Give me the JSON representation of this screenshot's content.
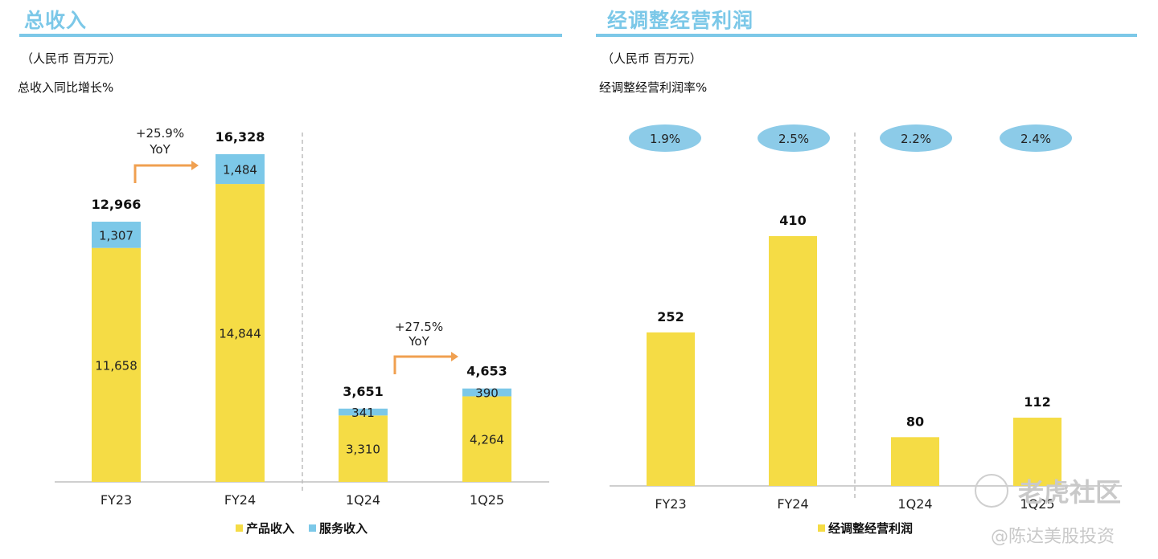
{
  "colors": {
    "product": "#f5dc45",
    "service": "#7cc8e8",
    "profit": "#f5dc45",
    "pill": "#8ccbe8",
    "arrow": "#f0a050",
    "title": "#7cc8e8"
  },
  "left_panel": {
    "title": "总收入",
    "unit": "（人民币 百万元）",
    "subtitle": "总收入同比增长%",
    "yoy": [
      {
        "pct": "+25.9%",
        "label": "YoY"
      },
      {
        "pct": "+27.5%",
        "label": "YoY"
      }
    ],
    "legend": [
      {
        "label": "产品收入",
        "color": "#f5dc45"
      },
      {
        "label": "服务收入",
        "color": "#7cc8e8"
      }
    ]
  },
  "right_panel": {
    "title": "经调整经营利润",
    "unit": "（人民币 百万元）",
    "subtitle": "经调整经营利润率%",
    "legend": [
      {
        "label": "经调整经营利润",
        "color": "#f5dc45"
      }
    ]
  },
  "watermark": {
    "brand": "老虎社区",
    "author": "@陈达美股投资"
  },
  "chart_data": [
    {
      "type": "bar",
      "stacked": true,
      "title": "总收入",
      "categories": [
        "FY23",
        "FY24",
        "1Q24",
        "1Q25"
      ],
      "series": [
        {
          "name": "产品收入",
          "values": [
            11658,
            14844,
            3310,
            4264
          ],
          "labels": [
            "11,658",
            "14,844",
            "3,310",
            "4,264"
          ]
        },
        {
          "name": "服务收入",
          "values": [
            1307,
            1484,
            341,
            390
          ],
          "labels": [
            "1,307",
            "1,484",
            "341",
            "390"
          ]
        }
      ],
      "totals": [
        12966,
        16328,
        3651,
        4653
      ],
      "total_labels": [
        "12,966",
        "16,328",
        "3,651",
        "4,653"
      ],
      "annotations": [
        {
          "between": [
            "FY23",
            "FY24"
          ],
          "text": "+25.9% YoY"
        },
        {
          "between": [
            "1Q24",
            "1Q25"
          ],
          "text": "+27.5% YoY"
        }
      ],
      "grid": false,
      "legend": "bottom"
    },
    {
      "type": "bar",
      "title": "经调整经营利润",
      "categories": [
        "FY23",
        "FY24",
        "1Q24",
        "1Q25"
      ],
      "series": [
        {
          "name": "经调整经营利润",
          "values": [
            252,
            410,
            80,
            112
          ],
          "labels": [
            "252",
            "410",
            "80",
            "112"
          ]
        }
      ],
      "margins": [
        "1.9%",
        "2.5%",
        "2.2%",
        "2.4%"
      ],
      "grid": false,
      "legend": "bottom"
    }
  ]
}
